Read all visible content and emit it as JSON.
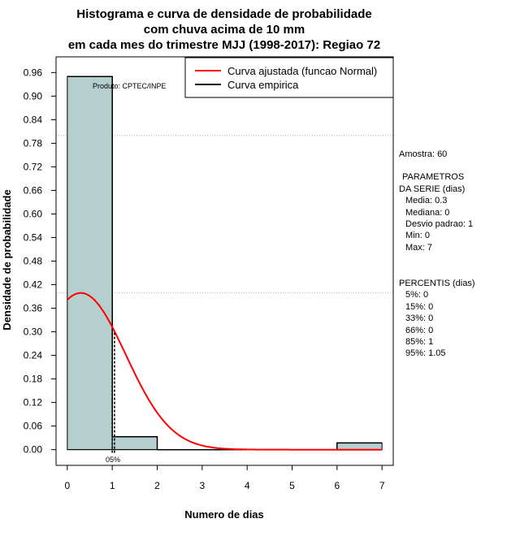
{
  "chart_data": {
    "type": "bar",
    "title": [
      "Histograma e curva de densidade de probabilidade",
      "com chuva acima de 10 mm",
      "em cada mes do trimestre MJJ (1998-2017): Regiao 72"
    ],
    "xlabel": "Numero de dias",
    "ylabel": "Densidade de probabilidade",
    "xlim": [
      -0.25,
      7.25
    ],
    "ylim": [
      -0.04,
      1.0
    ],
    "x_ticks": [
      0,
      1,
      2,
      3,
      4,
      5,
      6,
      7
    ],
    "y_ticks": [
      0.0,
      0.06,
      0.12,
      0.18,
      0.24,
      0.3,
      0.36,
      0.42,
      0.48,
      0.54,
      0.6,
      0.66,
      0.72,
      0.78,
      0.84,
      0.9,
      0.96
    ],
    "y_tick_labels": [
      "0.00",
      "0.06",
      "0.12",
      "0.18",
      "0.24",
      "0.30",
      "0.36",
      "0.42",
      "0.48",
      "0.54",
      "0.60",
      "0.66",
      "0.72",
      "0.78",
      "0.84",
      "0.90",
      "0.96"
    ],
    "gridlines_y": [
      0.4,
      0.8
    ],
    "histogram": {
      "bins": [
        {
          "start": 0,
          "end": 1,
          "density": 0.95
        },
        {
          "start": 1,
          "end": 2,
          "density": 0.033
        },
        {
          "start": 2,
          "end": 3,
          "density": 0
        },
        {
          "start": 3,
          "end": 4,
          "density": 0
        },
        {
          "start": 4,
          "end": 5,
          "density": 0
        },
        {
          "start": 5,
          "end": 6,
          "density": 0
        },
        {
          "start": 6,
          "end": 7,
          "density": 0.017
        }
      ],
      "fill": "#b5cece"
    },
    "normal_curve": {
      "mean": 0.3,
      "sd": 1,
      "range": [
        0,
        7
      ],
      "color": "#ff0000"
    },
    "empirical_curve": {
      "x": [
        0,
        1,
        1,
        2,
        2,
        6,
        6,
        7
      ],
      "y": [
        0.95,
        0.95,
        0.033,
        0.033,
        0,
        0,
        0.017,
        0.017
      ],
      "color": "#000000"
    },
    "percentile_markers": [
      {
        "x": 1,
        "label": "85%"
      },
      {
        "x": 1.05,
        "label": "95%"
      }
    ],
    "marker_labels_text": "05%",
    "legend": [
      {
        "label": "Curva ajustada (funcao Normal)",
        "color": "#ff0000"
      },
      {
        "label": "Curva empirica",
        "color": "#000000"
      }
    ],
    "legend_position": "top-right",
    "product_label": "Produto: CPTEC/INPE",
    "side_panel": {
      "amostra": "Amostra: 60",
      "parametros_title": [
        "PARAMETROS",
        "DA SERIE (dias)"
      ],
      "parametros": [
        "Media: 0.3",
        "Mediana: 0",
        "Desvio padrao: 1",
        "Min: 0",
        "Max: 7"
      ],
      "percentis_title": "PERCENTIS (dias)",
      "percentis": [
        "5%: 0",
        "15%: 0",
        "33%: 0",
        "66%: 0",
        "85%: 1",
        "95%: 1.05"
      ]
    }
  }
}
